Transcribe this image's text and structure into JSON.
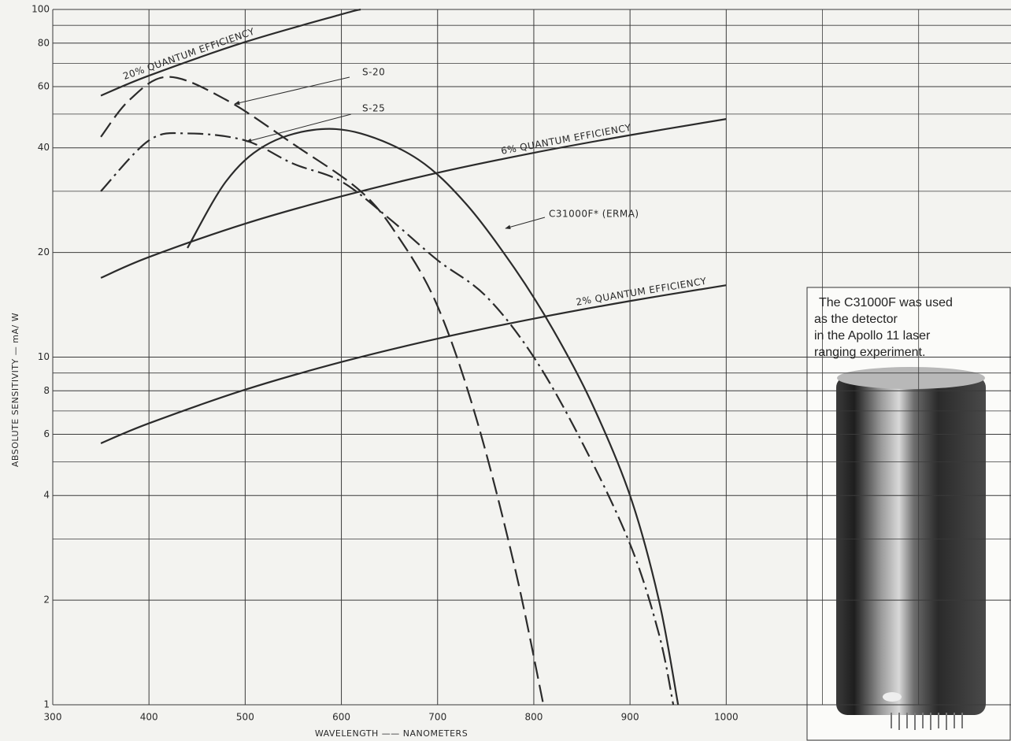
{
  "chart_data": {
    "type": "line",
    "y_label": "ABSOLUTE SENSITIVITY — mA/ W",
    "x_label": "WAVELENGTH —— NANOMETERS",
    "xlim": [
      300,
      1296
    ],
    "xticks": [
      300,
      400,
      500,
      600,
      700,
      800,
      900,
      1000
    ],
    "x_minor_grid": [
      1100,
      1200
    ],
    "ylim": [
      1,
      100
    ],
    "yscale": "log",
    "yticks": [
      1,
      2,
      4,
      6,
      8,
      10,
      20,
      40,
      60,
      80,
      100
    ],
    "y_minor_grid": [
      3,
      5,
      7,
      9,
      30,
      50,
      70,
      90
    ],
    "grid": true,
    "series": [
      {
        "name": "S-20",
        "color": "#2b2b2b",
        "dash": "dashed",
        "x": [
          350,
          380,
          420,
          480,
          550,
          620,
          660,
          700,
          740,
          780,
          810
        ],
        "values": [
          43,
          55,
          64,
          55,
          41,
          30,
          22,
          14,
          6.7,
          2.5,
          1
        ]
      },
      {
        "name": "S-25",
        "color": "#2b2b2b",
        "dash": "dashdot",
        "x": [
          350,
          400,
          440,
          500,
          550,
          600,
          650,
          700,
          750,
          800,
          850,
          900,
          930,
          945
        ],
        "values": [
          30,
          42,
          44,
          42,
          36,
          32,
          25,
          19,
          15,
          10,
          5.7,
          2.9,
          1.6,
          1
        ]
      },
      {
        "name": "C31000F* (ERMA)",
        "color": "#2b2b2b",
        "dash": "solid",
        "x": [
          440,
          480,
          520,
          570,
          620,
          680,
          730,
          780,
          820,
          860,
          900,
          930,
          950
        ],
        "values": [
          20.6,
          32,
          40.5,
          45,
          44,
          37,
          27.5,
          18,
          12,
          7.4,
          4.0,
          2.0,
          1
        ]
      },
      {
        "name": "20% QUANTUM EFFICIENCY",
        "color": "#2b2b2b",
        "dash": "solid",
        "x": [
          350,
          400,
          500,
          600,
          620
        ],
        "values": [
          56.5,
          64.5,
          80.6,
          96.8,
          100
        ]
      },
      {
        "name": "6% QUANTUM EFFICIENCY",
        "color": "#2b2b2b",
        "dash": "solid",
        "x": [
          350,
          400,
          500,
          600,
          700,
          800,
          900,
          1000
        ],
        "values": [
          16.9,
          19.4,
          24.2,
          29,
          33.9,
          38.7,
          43.5,
          48.4
        ]
      },
      {
        "name": "2% QUANTUM EFFICIENCY",
        "color": "#2b2b2b",
        "dash": "solid",
        "x": [
          350,
          400,
          500,
          600,
          700,
          800,
          900,
          1000
        ],
        "values": [
          5.65,
          6.45,
          8.06,
          9.68,
          11.3,
          12.9,
          14.5,
          16.1
        ]
      }
    ],
    "inset_caption": [
      "The C31000F was used",
      "as the detector",
      "in the Apollo 11 laser",
      "ranging experiment."
    ]
  }
}
